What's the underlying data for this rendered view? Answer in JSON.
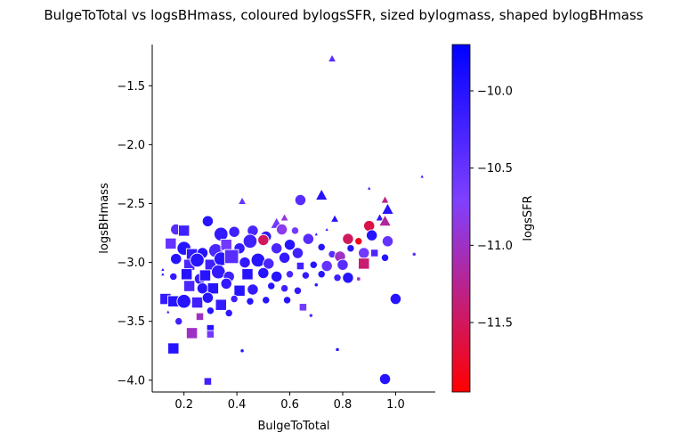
{
  "chart_data": {
    "type": "scatter",
    "title": "BulgeToTotal vs logsBHmass, coloured bylogsSFR, sized bylogmass, shaped bylogBHmass",
    "xlabel": "BulgeToTotal",
    "ylabel": "logsBHmass",
    "xlim": [
      0.08,
      1.15
    ],
    "ylim": [
      -4.1,
      -1.15
    ],
    "xticks": [
      0.2,
      0.4,
      0.6,
      0.8,
      1.0
    ],
    "xtick_labels": [
      "0.2",
      "0.4",
      "0.6",
      "0.8",
      "1.0"
    ],
    "yticks": [
      -1.5,
      -2.0,
      -2.5,
      -3.0,
      -3.5,
      -4.0
    ],
    "ytick_labels": [
      "−1.5",
      "−2.0",
      "−2.5",
      "−3.0",
      "−3.5",
      "−4.0"
    ],
    "grid": false,
    "colorbar": {
      "label": "logsSFR",
      "range": [
        -11.95,
        -9.7
      ],
      "ticks": [
        -10.0,
        -10.5,
        -11.0,
        -11.5
      ],
      "tick_labels": [
        "−10.0",
        "−10.5",
        "−11.0",
        "−11.5"
      ],
      "color_low": "#ff0000",
      "color_mid": "#8040ff",
      "color_high": "#0000ff"
    },
    "marker_edge_color": "#ffffff",
    "points": [
      {
        "x": 0.76,
        "y": -1.27,
        "c": -10.4,
        "s": 2,
        "m": "triangle"
      },
      {
        "x": 0.42,
        "y": -2.48,
        "c": -10.5,
        "s": 2,
        "m": "triangle"
      },
      {
        "x": 0.64,
        "y": -2.47,
        "c": -10.4,
        "s": 3,
        "m": "circle"
      },
      {
        "x": 0.72,
        "y": -2.43,
        "c": -10.0,
        "s": 3,
        "m": "triangle"
      },
      {
        "x": 0.9,
        "y": -2.37,
        "c": -10.0,
        "s": 1,
        "m": "triangle"
      },
      {
        "x": 1.1,
        "y": -2.27,
        "c": -10.0,
        "s": 1,
        "m": "triangle"
      },
      {
        "x": 0.96,
        "y": -2.47,
        "c": -11.3,
        "s": 2,
        "m": "triangle"
      },
      {
        "x": 0.97,
        "y": -2.55,
        "c": -10.0,
        "s": 3,
        "m": "triangle"
      },
      {
        "x": 0.94,
        "y": -2.62,
        "c": -10.1,
        "s": 2,
        "m": "triangle"
      },
      {
        "x": 0.77,
        "y": -2.63,
        "c": -10.0,
        "s": 2,
        "m": "triangle"
      },
      {
        "x": 0.58,
        "y": -2.62,
        "c": -10.9,
        "s": 2,
        "m": "triangle"
      },
      {
        "x": 0.55,
        "y": -2.67,
        "c": -10.6,
        "s": 3,
        "m": "triangle"
      },
      {
        "x": 0.29,
        "y": -2.65,
        "c": -10.0,
        "s": 3,
        "m": "circle"
      },
      {
        "x": 0.17,
        "y": -2.72,
        "c": -10.4,
        "s": 3,
        "m": "circle"
      },
      {
        "x": 0.2,
        "y": -2.73,
        "c": -10.2,
        "s": 3,
        "m": "square"
      },
      {
        "x": 0.34,
        "y": -2.76,
        "c": -10.1,
        "s": 4,
        "m": "circle"
      },
      {
        "x": 0.39,
        "y": -2.74,
        "c": -10.2,
        "s": 3,
        "m": "circle"
      },
      {
        "x": 0.46,
        "y": -2.73,
        "c": -10.3,
        "s": 3,
        "m": "circle"
      },
      {
        "x": 0.51,
        "y": -2.78,
        "c": -10.1,
        "s": 3,
        "m": "circle"
      },
      {
        "x": 0.57,
        "y": -2.72,
        "c": -10.8,
        "s": 3,
        "m": "circle"
      },
      {
        "x": 0.62,
        "y": -2.73,
        "c": -10.6,
        "s": 2,
        "m": "circle"
      },
      {
        "x": 0.67,
        "y": -2.8,
        "c": -10.4,
        "s": 3,
        "m": "circle"
      },
      {
        "x": 0.7,
        "y": -2.76,
        "c": -10.0,
        "s": 1,
        "m": "triangle"
      },
      {
        "x": 0.74,
        "y": -2.72,
        "c": -10.2,
        "s": 1,
        "m": "triangle"
      },
      {
        "x": 0.82,
        "y": -2.8,
        "c": -11.5,
        "s": 3,
        "m": "circle"
      },
      {
        "x": 0.86,
        "y": -2.82,
        "c": -11.8,
        "s": 2,
        "m": "circle"
      },
      {
        "x": 0.9,
        "y": -2.69,
        "c": -11.6,
        "s": 3,
        "m": "circle"
      },
      {
        "x": 0.91,
        "y": -2.77,
        "c": -10.0,
        "s": 3,
        "m": "circle"
      },
      {
        "x": 0.96,
        "y": -2.65,
        "c": -11.2,
        "s": 3,
        "m": "triangle"
      },
      {
        "x": 0.97,
        "y": -2.82,
        "c": -10.5,
        "s": 3,
        "m": "circle"
      },
      {
        "x": 0.15,
        "y": -2.84,
        "c": -10.5,
        "s": 3,
        "m": "square"
      },
      {
        "x": 0.2,
        "y": -2.88,
        "c": -10.0,
        "s": 4,
        "m": "circle"
      },
      {
        "x": 0.23,
        "y": -2.93,
        "c": -10.1,
        "s": 3,
        "m": "square"
      },
      {
        "x": 0.27,
        "y": -2.92,
        "c": -10.0,
        "s": 3,
        "m": "circle"
      },
      {
        "x": 0.32,
        "y": -2.9,
        "c": -10.3,
        "s": 4,
        "m": "circle"
      },
      {
        "x": 0.36,
        "y": -2.85,
        "c": -10.6,
        "s": 3,
        "m": "square"
      },
      {
        "x": 0.41,
        "y": -2.88,
        "c": -10.1,
        "s": 3,
        "m": "circle"
      },
      {
        "x": 0.45,
        "y": -2.82,
        "c": -10.2,
        "s": 4,
        "m": "circle"
      },
      {
        "x": 0.5,
        "y": -2.81,
        "c": -11.5,
        "s": 3,
        "m": "circle"
      },
      {
        "x": 0.55,
        "y": -2.88,
        "c": -10.3,
        "s": 3,
        "m": "circle"
      },
      {
        "x": 0.6,
        "y": -2.85,
        "c": -10.0,
        "s": 3,
        "m": "circle"
      },
      {
        "x": 0.63,
        "y": -2.92,
        "c": -10.2,
        "s": 3,
        "m": "circle"
      },
      {
        "x": 0.72,
        "y": -2.87,
        "c": -10.0,
        "s": 2,
        "m": "circle"
      },
      {
        "x": 0.76,
        "y": -2.93,
        "c": -10.4,
        "s": 2,
        "m": "circle"
      },
      {
        "x": 0.79,
        "y": -2.95,
        "c": -11.0,
        "s": 3,
        "m": "circle"
      },
      {
        "x": 0.83,
        "y": -2.88,
        "c": -10.0,
        "s": 2,
        "m": "circle"
      },
      {
        "x": 0.88,
        "y": -2.92,
        "c": -10.6,
        "s": 3,
        "m": "circle"
      },
      {
        "x": 0.92,
        "y": -2.92,
        "c": -10.3,
        "s": 2,
        "m": "square"
      },
      {
        "x": 0.96,
        "y": -2.96,
        "c": -10.0,
        "s": 2,
        "m": "circle"
      },
      {
        "x": 1.07,
        "y": -2.93,
        "c": -10.5,
        "s": 1,
        "m": "circle"
      },
      {
        "x": 0.17,
        "y": -2.97,
        "c": -10.0,
        "s": 3,
        "m": "circle"
      },
      {
        "x": 0.22,
        "y": -3.02,
        "c": -10.3,
        "s": 3,
        "m": "square"
      },
      {
        "x": 0.25,
        "y": -2.98,
        "c": -10.0,
        "s": 4,
        "m": "circle"
      },
      {
        "x": 0.3,
        "y": -3.02,
        "c": -10.2,
        "s": 3,
        "m": "square"
      },
      {
        "x": 0.34,
        "y": -2.97,
        "c": -10.0,
        "s": 4,
        "m": "circle"
      },
      {
        "x": 0.38,
        "y": -2.95,
        "c": -10.4,
        "s": 4,
        "m": "square"
      },
      {
        "x": 0.43,
        "y": -3.0,
        "c": -10.1,
        "s": 3,
        "m": "circle"
      },
      {
        "x": 0.48,
        "y": -2.98,
        "c": -10.0,
        "s": 4,
        "m": "circle"
      },
      {
        "x": 0.52,
        "y": -3.01,
        "c": -10.3,
        "s": 3,
        "m": "circle"
      },
      {
        "x": 0.58,
        "y": -2.96,
        "c": -10.1,
        "s": 3,
        "m": "circle"
      },
      {
        "x": 0.64,
        "y": -3.03,
        "c": -10.2,
        "s": 2,
        "m": "square"
      },
      {
        "x": 0.69,
        "y": -3.02,
        "c": -10.0,
        "s": 2,
        "m": "circle"
      },
      {
        "x": 0.74,
        "y": -3.03,
        "c": -10.5,
        "s": 3,
        "m": "circle"
      },
      {
        "x": 0.8,
        "y": -3.02,
        "c": -10.4,
        "s": 3,
        "m": "circle"
      },
      {
        "x": 0.88,
        "y": -3.01,
        "c": -11.4,
        "s": 3,
        "m": "square"
      },
      {
        "x": 0.12,
        "y": -3.1,
        "c": -10.0,
        "s": 1,
        "m": "triangle"
      },
      {
        "x": 0.16,
        "y": -3.12,
        "c": -10.1,
        "s": 2,
        "m": "circle"
      },
      {
        "x": 0.21,
        "y": -3.1,
        "c": -10.0,
        "s": 3,
        "m": "square"
      },
      {
        "x": 0.26,
        "y": -3.14,
        "c": -10.1,
        "s": 3,
        "m": "circle"
      },
      {
        "x": 0.28,
        "y": -3.11,
        "c": -10.0,
        "s": 3,
        "m": "square"
      },
      {
        "x": 0.33,
        "y": -3.08,
        "c": -10.1,
        "s": 4,
        "m": "circle"
      },
      {
        "x": 0.37,
        "y": -3.12,
        "c": -10.2,
        "s": 3,
        "m": "circle"
      },
      {
        "x": 0.44,
        "y": -3.1,
        "c": -10.0,
        "s": 3,
        "m": "square"
      },
      {
        "x": 0.5,
        "y": -3.09,
        "c": -10.0,
        "s": 3,
        "m": "circle"
      },
      {
        "x": 0.55,
        "y": -3.12,
        "c": -10.0,
        "s": 3,
        "m": "circle"
      },
      {
        "x": 0.6,
        "y": -3.1,
        "c": -10.3,
        "s": 2,
        "m": "circle"
      },
      {
        "x": 0.66,
        "y": -3.11,
        "c": -10.1,
        "s": 2,
        "m": "circle"
      },
      {
        "x": 0.72,
        "y": -3.1,
        "c": -10.0,
        "s": 2,
        "m": "circle"
      },
      {
        "x": 0.78,
        "y": -3.13,
        "c": -10.2,
        "s": 2,
        "m": "circle"
      },
      {
        "x": 0.82,
        "y": -3.13,
        "c": -10.0,
        "s": 3,
        "m": "circle"
      },
      {
        "x": 0.86,
        "y": -3.14,
        "c": -11.0,
        "s": 1,
        "m": "square"
      },
      {
        "x": 0.22,
        "y": -3.2,
        "c": -10.3,
        "s": 3,
        "m": "square"
      },
      {
        "x": 0.27,
        "y": -3.22,
        "c": -10.0,
        "s": 3,
        "m": "circle"
      },
      {
        "x": 0.31,
        "y": -3.22,
        "c": -10.0,
        "s": 3,
        "m": "square"
      },
      {
        "x": 0.36,
        "y": -3.18,
        "c": -10.1,
        "s": 3,
        "m": "circle"
      },
      {
        "x": 0.41,
        "y": -3.24,
        "c": -10.0,
        "s": 3,
        "m": "square"
      },
      {
        "x": 0.46,
        "y": -3.23,
        "c": -10.1,
        "s": 3,
        "m": "circle"
      },
      {
        "x": 0.53,
        "y": -3.2,
        "c": -10.0,
        "s": 2,
        "m": "circle"
      },
      {
        "x": 0.58,
        "y": -3.22,
        "c": -10.2,
        "s": 2,
        "m": "circle"
      },
      {
        "x": 0.63,
        "y": -3.24,
        "c": -10.1,
        "s": 2,
        "m": "circle"
      },
      {
        "x": 0.7,
        "y": -3.19,
        "c": -10.0,
        "s": 1,
        "m": "circle"
      },
      {
        "x": 0.13,
        "y": -3.31,
        "c": -10.1,
        "s": 3,
        "m": "square"
      },
      {
        "x": 0.16,
        "y": -3.33,
        "c": -10.0,
        "s": 3,
        "m": "square"
      },
      {
        "x": 0.2,
        "y": -3.33,
        "c": -10.0,
        "s": 4,
        "m": "circle"
      },
      {
        "x": 0.25,
        "y": -3.34,
        "c": -10.2,
        "s": 3,
        "m": "square"
      },
      {
        "x": 0.29,
        "y": -3.3,
        "c": -10.0,
        "s": 3,
        "m": "circle"
      },
      {
        "x": 0.34,
        "y": -3.36,
        "c": -10.1,
        "s": 3,
        "m": "square"
      },
      {
        "x": 0.39,
        "y": -3.31,
        "c": -10.2,
        "s": 2,
        "m": "circle"
      },
      {
        "x": 0.45,
        "y": -3.33,
        "c": -10.0,
        "s": 2,
        "m": "circle"
      },
      {
        "x": 0.51,
        "y": -3.32,
        "c": -10.0,
        "s": 2,
        "m": "circle"
      },
      {
        "x": 0.59,
        "y": -3.32,
        "c": -10.0,
        "s": 2,
        "m": "circle"
      },
      {
        "x": 0.65,
        "y": -3.38,
        "c": -10.6,
        "s": 2,
        "m": "square"
      },
      {
        "x": 1.0,
        "y": -3.31,
        "c": -10.0,
        "s": 3,
        "m": "circle"
      },
      {
        "x": 0.18,
        "y": -3.5,
        "c": -10.2,
        "s": 2,
        "m": "circle"
      },
      {
        "x": 0.26,
        "y": -3.46,
        "c": -11.0,
        "s": 2,
        "m": "square"
      },
      {
        "x": 0.3,
        "y": -3.41,
        "c": -10.0,
        "s": 2,
        "m": "circle"
      },
      {
        "x": 0.37,
        "y": -3.43,
        "c": -10.1,
        "s": 2,
        "m": "circle"
      },
      {
        "x": 0.23,
        "y": -3.6,
        "c": -11.0,
        "s": 3,
        "m": "square"
      },
      {
        "x": 0.3,
        "y": -3.56,
        "c": -10.0,
        "s": 2,
        "m": "square"
      },
      {
        "x": 0.3,
        "y": -3.61,
        "c": -10.6,
        "s": 2,
        "m": "square"
      },
      {
        "x": 0.16,
        "y": -3.73,
        "c": -10.0,
        "s": 3,
        "m": "square"
      },
      {
        "x": 0.29,
        "y": -4.01,
        "c": -10.2,
        "s": 2,
        "m": "square"
      },
      {
        "x": 0.96,
        "y": -3.99,
        "c": -10.0,
        "s": 3,
        "m": "circle"
      },
      {
        "x": 0.42,
        "y": -3.75,
        "c": -10.0,
        "s": 1,
        "m": "circle"
      },
      {
        "x": 0.78,
        "y": -3.74,
        "c": -10.0,
        "s": 1,
        "m": "circle"
      },
      {
        "x": 0.68,
        "y": -3.45,
        "c": -10.4,
        "s": 1,
        "m": "circle"
      },
      {
        "x": 0.14,
        "y": -3.42,
        "c": -10.0,
        "s": 1,
        "m": "triangle"
      },
      {
        "x": 0.12,
        "y": -3.06,
        "c": -10.0,
        "s": 1,
        "m": "triangle"
      }
    ]
  }
}
